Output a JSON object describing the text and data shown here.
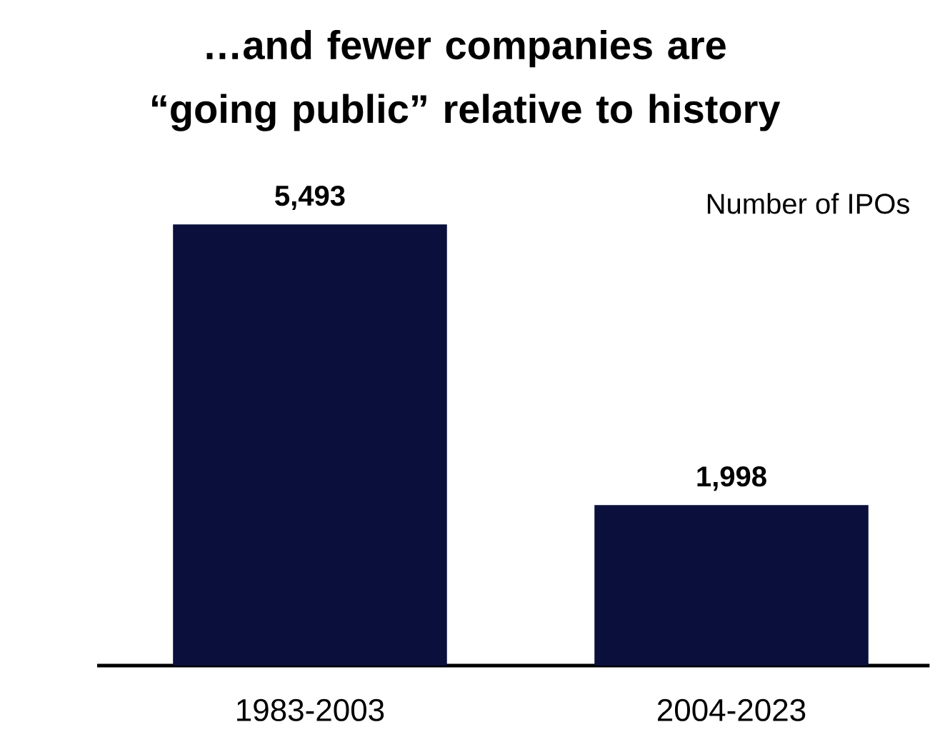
{
  "chart_data": {
    "type": "bar",
    "title": "…and fewer companies are “going public” relative to history",
    "annotations": [
      "Number of IPOs"
    ],
    "categories": [
      "1983-2003",
      "2004-2023"
    ],
    "values": [
      5493,
      1998
    ],
    "value_labels": [
      "5,493",
      "1,998"
    ],
    "color": "#0a0f3c"
  }
}
